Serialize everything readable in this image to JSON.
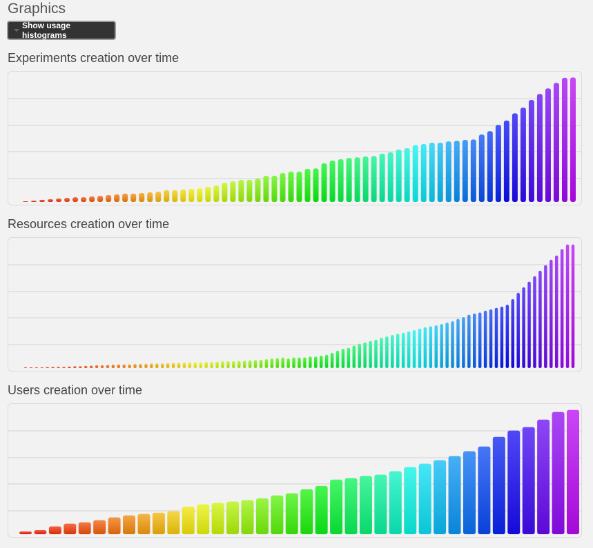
{
  "header": {
    "title": "Graphics",
    "toggle_button": "Show usage histograms"
  },
  "chart_data": [
    {
      "type": "bar",
      "title": "Experiments creation over time",
      "xlabel": "",
      "ylabel": "",
      "ylim": [
        0,
        100
      ],
      "grid": true,
      "legend": "none",
      "values": [
        0.3,
        1,
        1.6,
        2.1,
        2.6,
        3.1,
        3.6,
        3.6,
        4.2,
        4.7,
        5.2,
        5.7,
        6.3,
        6.3,
        6.8,
        7.3,
        7.8,
        8.9,
        8.9,
        9.4,
        9.9,
        10.4,
        11.5,
        12.5,
        14.6,
        15.6,
        16.7,
        16.7,
        17.7,
        19.8,
        19.8,
        21.9,
        22.9,
        22.9,
        25,
        25.3,
        29.2,
        31.3,
        32.3,
        33.3,
        33.7,
        34.4,
        34.7,
        36.5,
        37.5,
        39.6,
        40.6,
        43,
        43.8,
        44.8,
        44.8,
        45.8,
        46.2,
        46.9,
        47.2,
        51,
        53.5,
        58.3,
        61.5,
        67,
        71.2,
        77.1,
        81.6,
        85.8,
        90,
        93.8,
        94.1
      ]
    },
    {
      "type": "bar",
      "title": "Resources creation over time",
      "xlabel": "",
      "ylabel": "",
      "ylim": [
        0,
        100
      ],
      "grid": true,
      "legend": "none",
      "values": [
        0.3,
        0.3,
        0.4,
        0.6,
        0.7,
        0.9,
        1,
        1,
        1.2,
        1.4,
        1.4,
        1.7,
        1.9,
        2.2,
        2.2,
        2.4,
        2.6,
        2.8,
        2.8,
        2.8,
        3.1,
        3.1,
        3.3,
        3.5,
        3.5,
        3.5,
        3.8,
        4,
        4,
        4.3,
        4.3,
        4.5,
        4.5,
        4.7,
        4.7,
        4.9,
        5.2,
        5.2,
        5.2,
        5.4,
        5.6,
        5.9,
        6.1,
        6.4,
        6.8,
        7.3,
        7.6,
        8,
        7.3,
        8,
        8,
        8,
        8.7,
        8.7,
        9.4,
        10.1,
        11.5,
        13.2,
        14.6,
        15.3,
        17,
        18.4,
        19.4,
        20.5,
        21.5,
        22.9,
        24,
        25,
        26,
        26.7,
        27.8,
        28.8,
        29.9,
        30.9,
        31.6,
        32.3,
        33.3,
        34.4,
        35.4,
        37.2,
        38.5,
        40.3,
        41.3,
        42,
        43.4,
        44.4,
        45.5,
        46.5,
        47.9,
        52.1,
        56.9,
        61.1,
        65.3,
        69.4,
        73.6,
        77.8,
        81.9,
        85.1,
        89.9,
        93.4,
        93.4
      ]
    },
    {
      "type": "bar",
      "title": "Users creation over time",
      "xlabel": "",
      "ylabel": "",
      "ylim": [
        0,
        100
      ],
      "grid": true,
      "legend": "none",
      "values": [
        2.1,
        3.1,
        5.9,
        8,
        9,
        10.6,
        12.7,
        14.2,
        15.3,
        16.3,
        17.4,
        20.8,
        22.6,
        23.6,
        24.7,
        25.7,
        27.1,
        29.3,
        30.9,
        34,
        36.5,
        41.3,
        42.4,
        44,
        45,
        47.6,
        50.7,
        53.3,
        55.9,
        59,
        62.7,
        66.3,
        73.6,
        78.3,
        80.9,
        86.6,
        92.4,
        93.9
      ]
    }
  ]
}
